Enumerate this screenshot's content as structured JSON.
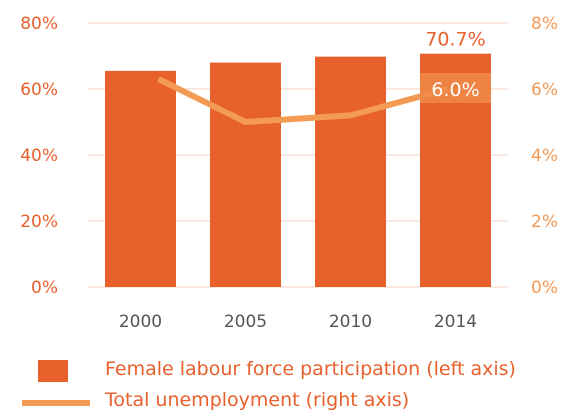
{
  "chart_data": {
    "type": "bar",
    "categories": [
      "2000",
      "2005",
      "2010",
      "2014"
    ],
    "series": [
      {
        "name": "Female labour force participation (left axis)",
        "type": "bar",
        "axis": "left",
        "values": [
          65.5,
          68.0,
          69.8,
          70.7
        ],
        "color": "#e8602c"
      },
      {
        "name": "Total unemployment (right axis)",
        "type": "line",
        "axis": "right",
        "values": [
          6.3,
          5.0,
          5.2,
          6.0
        ],
        "color": "#f39a55"
      }
    ],
    "left_axis": {
      "ylim": [
        0,
        80
      ],
      "ticks": [
        "0%",
        "20%",
        "40%",
        "60%",
        "80%"
      ]
    },
    "right_axis": {
      "ylim": [
        0,
        8
      ],
      "ticks": [
        "0%",
        "2%",
        "4%",
        "6%",
        "8%"
      ]
    },
    "data_labels": {
      "bar_2014": "70.7%",
      "line_2014": "6.0%"
    },
    "grid": true,
    "legend_placement": "bottom"
  }
}
